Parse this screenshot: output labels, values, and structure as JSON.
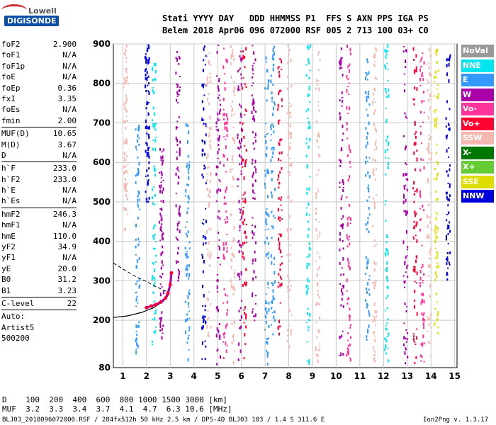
{
  "logo": {
    "line1": "Lowell",
    "line2": "DIGISONDE"
  },
  "header": {
    "row1": "Stati YYYY DAY   DDD HHMMSS P1  FFS S AXN PPS IGA PS",
    "row2": "Belem 2018 Apr06 096 072000 RSF 005 2 713 100 03+ C0"
  },
  "params": {
    "group1": [
      {
        "name": "foF2",
        "value": "2.900"
      },
      {
        "name": "foF1",
        "value": "N/A"
      },
      {
        "name": "foF1p",
        "value": "N/A"
      },
      {
        "name": "foE",
        "value": "N/A"
      },
      {
        "name": "foEp",
        "value": "0.36"
      },
      {
        "name": "fxI",
        "value": "3.35"
      },
      {
        "name": "foEs",
        "value": "N/A"
      },
      {
        "name": "fmin",
        "value": "2.00"
      }
    ],
    "group2": [
      {
        "name": "MUF(D)",
        "value": "10.65"
      },
      {
        "name": "M(D)",
        "value": "3.67"
      },
      {
        "name": "D",
        "value": "N/A"
      }
    ],
    "group3": [
      {
        "name": "h`F",
        "value": "233.0"
      },
      {
        "name": "h`F2",
        "value": "233.0"
      },
      {
        "name": "h`E",
        "value": "N/A"
      },
      {
        "name": "h`Es",
        "value": "N/A"
      }
    ],
    "group4": [
      {
        "name": "hmF2",
        "value": "246.3"
      },
      {
        "name": "hmF1",
        "value": "N/A"
      },
      {
        "name": "hmE",
        "value": "110.0"
      },
      {
        "name": "yF2",
        "value": "34.9"
      },
      {
        "name": "yF1",
        "value": "N/A"
      },
      {
        "name": "yE",
        "value": "20.0"
      },
      {
        "name": "B0",
        "value": "31.2"
      },
      {
        "name": "B1",
        "value": "3.23"
      }
    ],
    "group5": [
      {
        "name": "C-level",
        "value": "22"
      }
    ],
    "auto": [
      "Auto:",
      "Artist5",
      "500200"
    ]
  },
  "legend": [
    {
      "label": "NoVal",
      "color": "#999999"
    },
    {
      "label": "NNE",
      "color": "#00e5ee"
    },
    {
      "label": "E",
      "color": "#3399ff"
    },
    {
      "label": "W",
      "color": "#aa00aa"
    },
    {
      "label": "Vo-",
      "color": "#ff3399"
    },
    {
      "label": "Vo+",
      "color": "#ff0033"
    },
    {
      "label": "SSW",
      "color": "#f5b8b0"
    },
    {
      "label": "X-",
      "color": "#007700"
    },
    {
      "label": "X+",
      "color": "#66cc33"
    },
    {
      "label": "SSE",
      "color": "#dddd00"
    },
    {
      "label": "NNW",
      "color": "#0000dd"
    }
  ],
  "bottom": {
    "d_row": "D    100  200  400  600  800 1000 1500 3000 [km]",
    "muf_row": "MUF  3.2  3.3  3.4  3.7  4.1  4.7  6.3 10.6 [MHz]",
    "footer_left": "BLJ03_2018096072000.RSF / 284fx512h 50 kHz 2.5 km / DPS-4D BLJ03 103 / 1.4 S 311.6 E",
    "footer_right": "Ion2Png v. 1.3.17"
  },
  "chart_data": {
    "type": "scatter",
    "title": "",
    "xlabel": "",
    "ylabel": "",
    "xlim": [
      0.6,
      15.1
    ],
    "ylim": [
      80,
      900
    ],
    "x_ticks": [
      1,
      2,
      3,
      4,
      5,
      6,
      7,
      8,
      9,
      10,
      11,
      12,
      13,
      14,
      15
    ],
    "y_ticks": [
      200,
      300,
      400,
      500,
      600,
      700,
      800,
      900
    ],
    "y_tick_labels": [
      80,
      200,
      300,
      400,
      500,
      600,
      700,
      800,
      900
    ],
    "grid": true,
    "trace_f2": [
      [
        2.0,
        232
      ],
      [
        2.2,
        236
      ],
      [
        2.4,
        240
      ],
      [
        2.6,
        246
      ],
      [
        2.8,
        256
      ],
      [
        2.9,
        268
      ],
      [
        3.0,
        290
      ],
      [
        3.05,
        320
      ]
    ],
    "profile_solid": [
      [
        0.6,
        207
      ],
      [
        1.2,
        211
      ],
      [
        1.8,
        220
      ],
      [
        2.3,
        232
      ],
      [
        2.7,
        248
      ],
      [
        2.9,
        262
      ],
      [
        2.95,
        280
      ]
    ],
    "profile_dashed": [
      [
        0.6,
        345
      ],
      [
        1.0,
        330
      ],
      [
        1.5,
        312
      ],
      [
        2.0,
        298
      ],
      [
        2.4,
        285
      ],
      [
        2.7,
        277
      ],
      [
        2.9,
        272
      ]
    ],
    "interference_columns": [
      {
        "x": 1.1,
        "y": [
          430,
          900
        ],
        "color": "#f5b8b0"
      },
      {
        "x": 1.6,
        "y": [
          120,
          700
        ],
        "color": "#3399ff"
      },
      {
        "x": 2.0,
        "y": [
          500,
          900
        ],
        "color": "#0000dd"
      },
      {
        "x": 2.3,
        "y": [
          140,
          900
        ],
        "color": "#00e5ee"
      },
      {
        "x": 2.6,
        "y": [
          150,
          650
        ],
        "color": "#aa00aa"
      },
      {
        "x": 3.3,
        "y": [
          300,
          900
        ],
        "color": "#aa00aa"
      },
      {
        "x": 3.7,
        "y": [
          90,
          700
        ],
        "color": "#3399ff"
      },
      {
        "x": 4.4,
        "y": [
          100,
          900
        ],
        "color": "#0000dd"
      },
      {
        "x": 4.6,
        "y": [
          150,
          900
        ],
        "color": "#f5b8b0"
      },
      {
        "x": 5.0,
        "y": [
          90,
          900
        ],
        "color": "#aa00aa"
      },
      {
        "x": 5.3,
        "y": [
          100,
          900
        ],
        "color": "#ff3399"
      },
      {
        "x": 5.6,
        "y": [
          90,
          900
        ],
        "color": "#f5b8b0"
      },
      {
        "x": 5.9,
        "y": [
          100,
          900
        ],
        "color": "#aa00aa"
      },
      {
        "x": 6.1,
        "y": [
          90,
          900
        ],
        "color": "#ff0033"
      },
      {
        "x": 6.5,
        "y": [
          200,
          900
        ],
        "color": "#aa00aa"
      },
      {
        "x": 7.05,
        "y": [
          90,
          900
        ],
        "color": "#3399ff"
      },
      {
        "x": 7.3,
        "y": [
          130,
          900
        ],
        "color": "#3399ff"
      },
      {
        "x": 7.6,
        "y": [
          150,
          880
        ],
        "color": "#ff0033"
      },
      {
        "x": 8.0,
        "y": [
          130,
          900
        ],
        "color": "#f5b8b0"
      },
      {
        "x": 8.8,
        "y": [
          90,
          900
        ],
        "color": "#00e5ee"
      },
      {
        "x": 9.2,
        "y": [
          100,
          900
        ],
        "color": "#f5b8b0"
      },
      {
        "x": 10.2,
        "y": [
          90,
          900
        ],
        "color": "#aa00aa"
      },
      {
        "x": 10.5,
        "y": [
          100,
          900
        ],
        "color": "#ff3399"
      },
      {
        "x": 11.3,
        "y": [
          150,
          900
        ],
        "color": "#3399ff"
      },
      {
        "x": 11.6,
        "y": [
          90,
          900
        ],
        "color": "#f5b8b0"
      },
      {
        "x": 12.1,
        "y": [
          100,
          900
        ],
        "color": "#00e5ee"
      },
      {
        "x": 12.9,
        "y": [
          90,
          900
        ],
        "color": "#aa00aa"
      },
      {
        "x": 13.3,
        "y": [
          90,
          900
        ],
        "color": "#ff0033"
      },
      {
        "x": 13.6,
        "y": [
          90,
          900
        ],
        "color": "#ff3399"
      },
      {
        "x": 13.9,
        "y": [
          90,
          900
        ],
        "color": "#f5b8b0"
      },
      {
        "x": 14.2,
        "y": [
          150,
          900
        ],
        "color": "#dddd00"
      },
      {
        "x": 14.7,
        "y": [
          300,
          900
        ],
        "color": "#0000dd"
      }
    ]
  }
}
